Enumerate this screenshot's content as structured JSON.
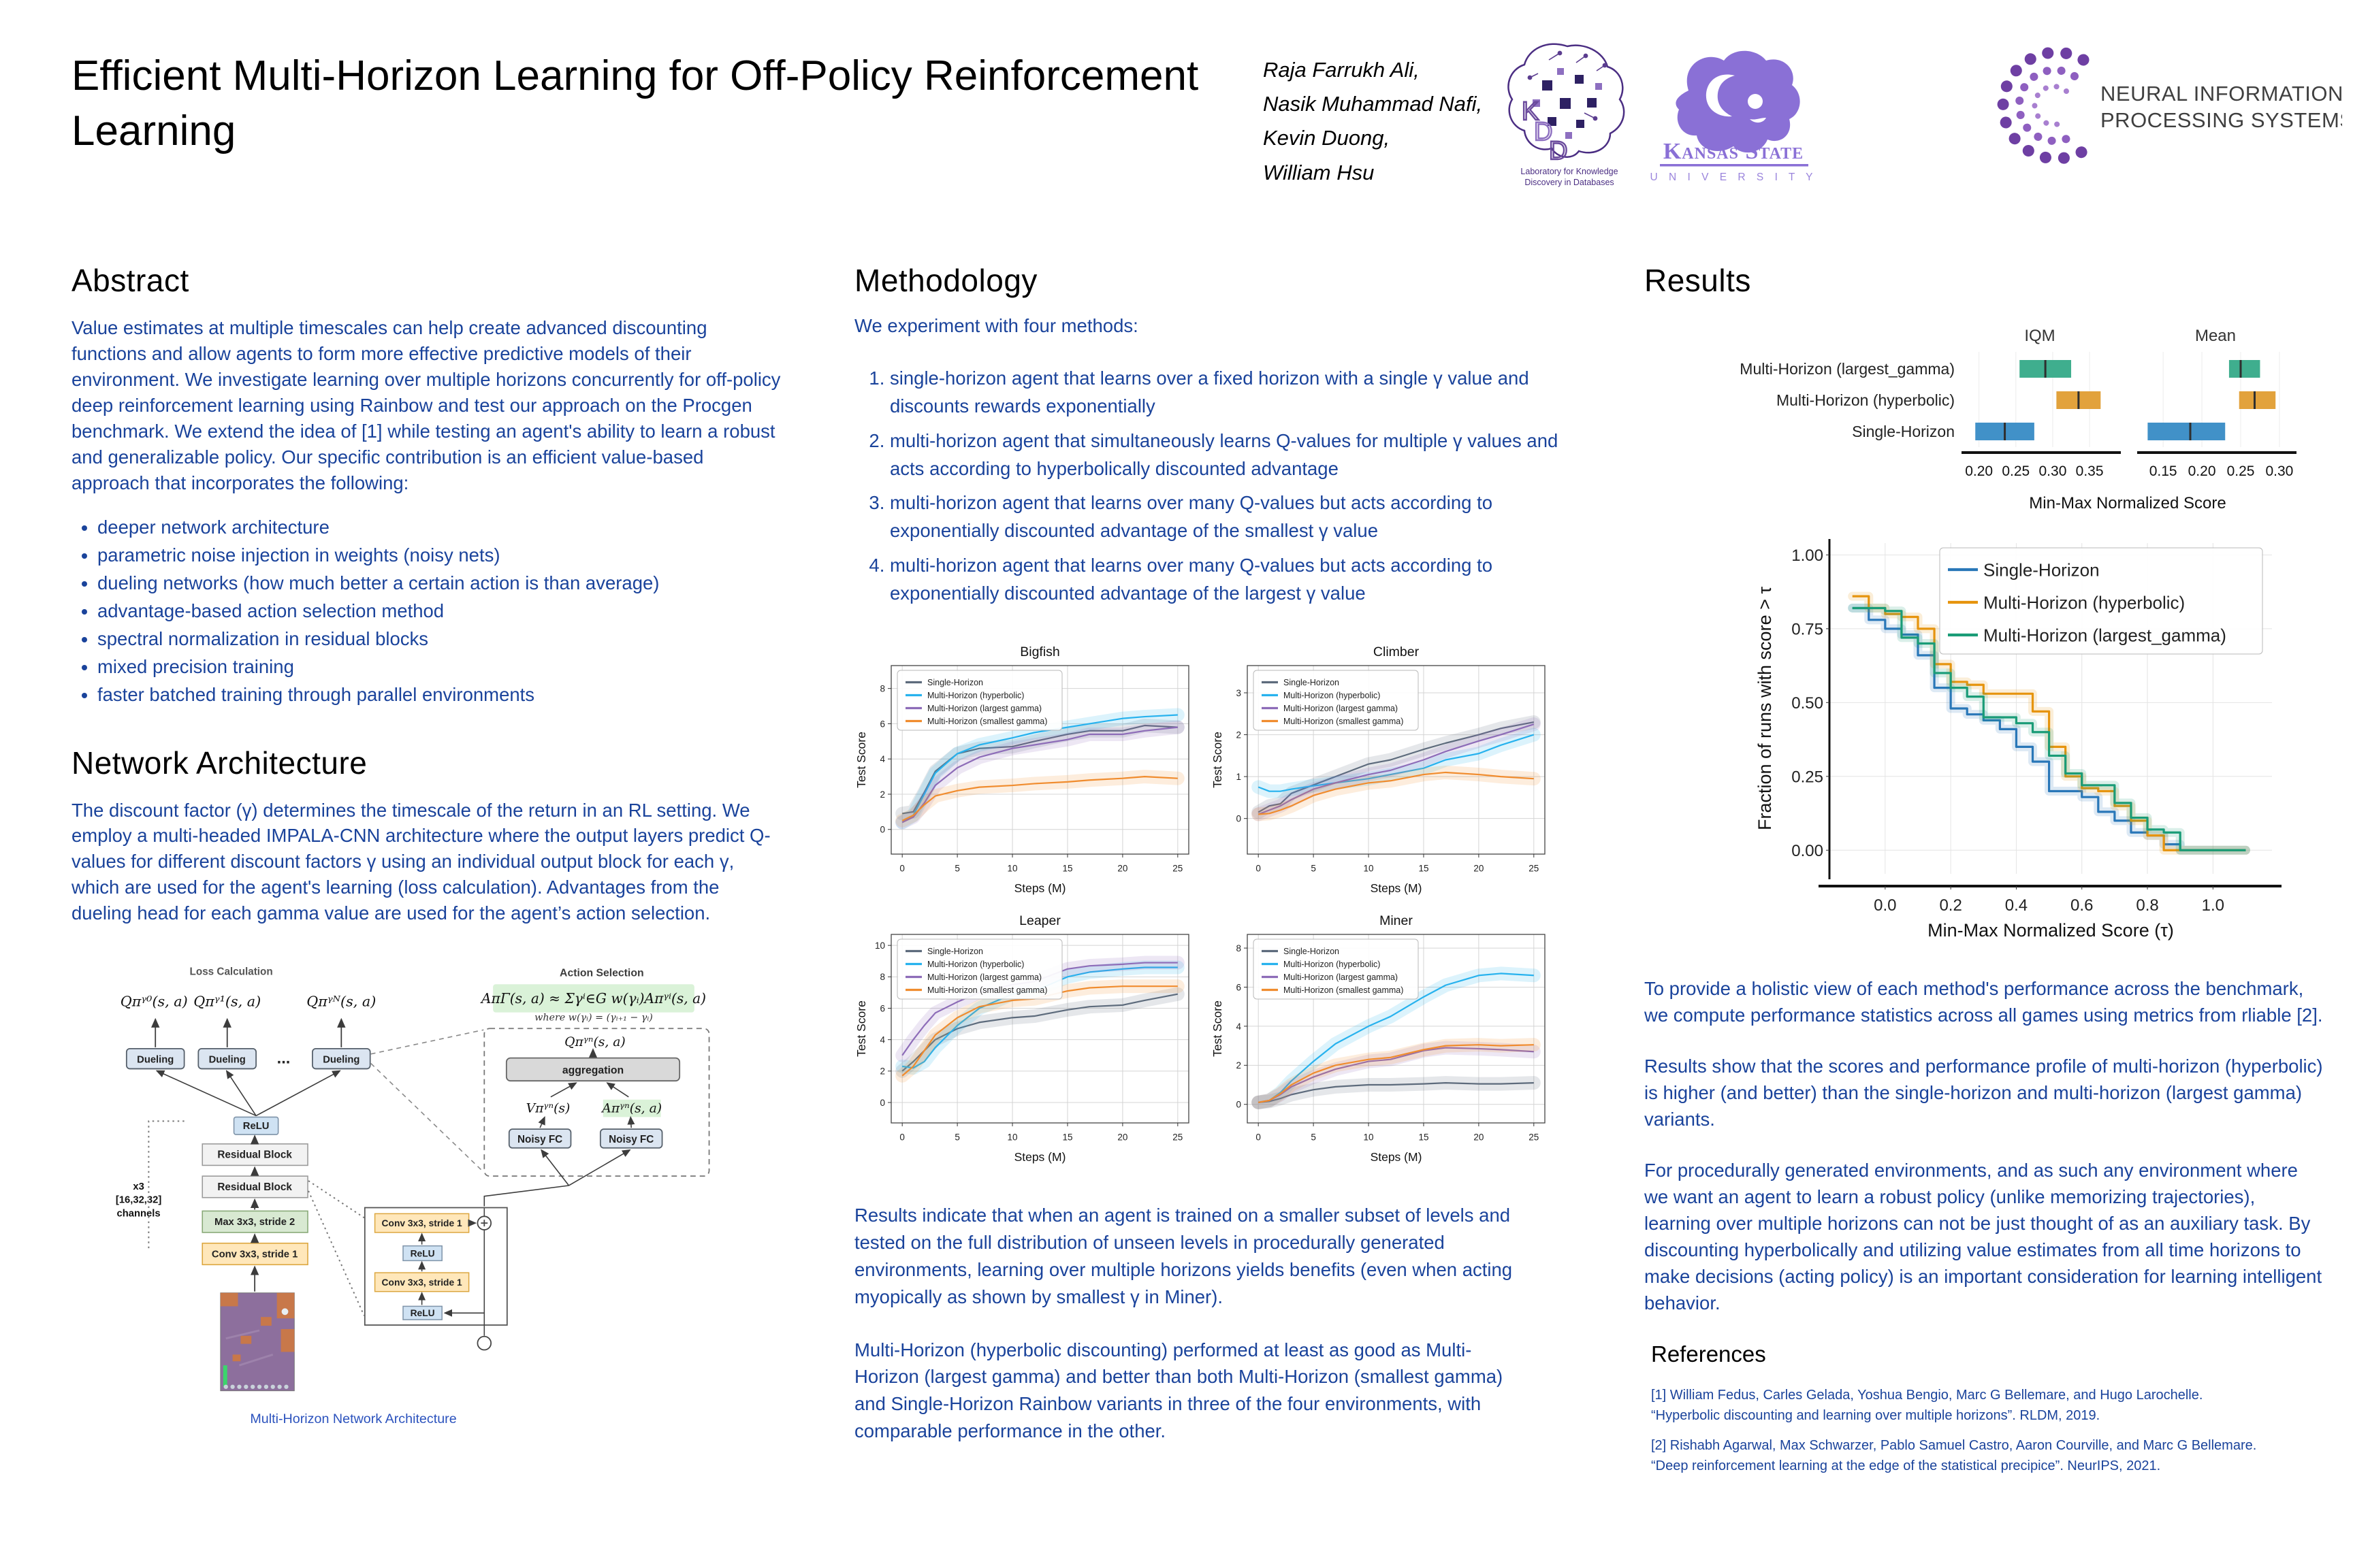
{
  "poster": {
    "title": "Efficient Multi-Horizon Learning for Off-Policy Reinforcement Learning",
    "authors": [
      "Raja Farrukh Ali,",
      "Nasik Muhammad Nafi,",
      "Kevin Duong,",
      "William Hsu"
    ],
    "logos": {
      "kdd_letters": "KDD",
      "kdd_caption_l1": "Laboratory for Knowledge",
      "kdd_caption_l2": "Discovery in Databases",
      "ksu_name": "Kansas State",
      "ksu_sub": "U N I V E R S I T Y",
      "neurips_l1": "NEURAL INFORMATION",
      "neurips_l2": "PROCESSING SYSTEMS"
    }
  },
  "abstract": {
    "heading": "Abstract",
    "body": "Value estimates at multiple timescales can help create advanced discounting functions and allow agents to form more effective predictive models of their environment. We investigate learning over multiple horizons concurrently for off-policy deep reinforcement learning using Rainbow and test our approach on the Procgen benchmark. We extend the idea of [1] while testing an agent's ability to learn a robust and generalizable policy. Our specific contribution is an efficient value-based approach that incorporates the following:",
    "bullets": [
      "deeper network architecture",
      "parametric noise injection in weights (noisy nets)",
      "dueling networks (how much better a certain action is than average)",
      "advantage-based action selection method",
      "spectral normalization in residual blocks",
      "mixed precision training",
      "faster batched training through parallel environments"
    ]
  },
  "network_architecture": {
    "heading": "Network Architecture",
    "body": "The discount factor (γ) determines the timescale of the return in an RL setting. We employ a multi-headed IMPALA-CNN architecture where the output layers predict Q-values for different discount factors γ using an individual output block for each γ, which are used for the agent's learning (loss calculation). Advantages from the dueling head for each gamma value are used for the agent’s action selection.",
    "diagram": {
      "loss_label": "Loss Calculation",
      "action_label": "Action Selection",
      "q0": "Qπᵞ⁰(s, a)",
      "q1": "Qπᵞ¹(s, a)",
      "qn_top": "Qπᵞᴺ(s, a)",
      "dueling": "Dueling",
      "dots": "...",
      "relu": "ReLU",
      "residual_block": "Residual Block",
      "max_pool": "Max 3x3, stride 2",
      "conv": "Conv 3x3, stride 1",
      "ch_l1": "x3",
      "ch_l2": "[16,32,32]",
      "ch_l3": "channels",
      "formula": "AπΓ(s, a) ≈ Σγⁱ∈G w(γᵢ)Aπᵞⁱ(s, a)",
      "formula_where": "where   w(γᵢ) = (γᵢ₊₁ − γᵢ)",
      "q_n": "Qπᵞⁿ(s, a)",
      "aggregation": "aggregation",
      "v_label": "Vπᵞⁿ(s)",
      "a_label": "Aπᵞⁿ(s, a)",
      "noisy_fc": "Noisy FC",
      "caption": "Multi-Horizon  Network  Architecture"
    }
  },
  "methodology": {
    "heading": "Methodology",
    "intro": "We experiment with four methods:",
    "items": [
      "single-horizon agent that learns over a fixed horizon with a single γ value and discounts rewards exponentially",
      "multi-horizon agent that simultaneously learns Q-values for multiple γ values and acts according to hyperbolically discounted advantage",
      "multi-horizon agent that learns over many Q-values but acts according to exponentially discounted advantage of the smallest γ value",
      "multi-horizon agent that learns over many Q-values but acts according to exponentially discounted advantage of the largest γ value"
    ],
    "note1": "Results indicate that when an agent is trained on a smaller subset of levels and tested on the full distribution of unseen levels in procedurally generated environments, learning over multiple horizons yields benefits (even when acting myopically as shown by smallest γ in Miner).",
    "note2": "Multi-Horizon (hyperbolic discounting) performed at least as good as Multi-Horizon (largest gamma) and better than both Multi-Horizon (smallest gamma) and Single-Horizon Rainbow variants in three of the four environments, with comparable performance in the other."
  },
  "results": {
    "heading": "Results",
    "p1": "To provide a holistic view of each method's performance across the benchmark, we compute performance statistics across all games using metrics from rliable [2].",
    "p2": "Results show that the scores and performance profile of multi-horizon (hyperbolic) is higher (and better) than the single-horizon and multi-horizon (largest gamma) variants.",
    "p3": "For procedurally generated environments, and as such any environment where we want an agent to learn a robust policy (unlike memorizing trajectories), learning over multiple horizons can not be just thought of as an auxiliary task. By discounting hyperbolically and utilizing value estimates from all time horizons to make decisions (acting policy) is an important consideration for learning intelligent behavior."
  },
  "references": {
    "heading": "References",
    "items": [
      "[1] William Fedus, Carles Gelada, Yoshua Bengio, Marc G Bellemare, and Hugo Larochelle. “Hyperbolic discounting and learning over multiple horizons”. RLDM, 2019.",
      "[2] Rishabh Agarwal, Max Schwarzer, Pablo Samuel Castro, Aaron Courville, and Marc G Bellemare. “Deep reinforcement learning at the edge of the statistical precipice”. NeurIPS, 2021."
    ]
  },
  "chart_data": [
    {
      "type": "line",
      "title": "Bigfish",
      "xlabel": "Steps (M)",
      "ylabel": "Test Score",
      "x": [
        0,
        1,
        2,
        3,
        5,
        7,
        10,
        12,
        15,
        17,
        20,
        22,
        25
      ],
      "xticks": [
        0,
        5,
        10,
        15,
        20,
        25
      ],
      "yticks": [
        0,
        2,
        4,
        6,
        8
      ],
      "xlim": [
        -1,
        26
      ],
      "ylim": [
        -1.4,
        9.3
      ],
      "grid": true,
      "legend_position": "top-left",
      "series": [
        {
          "name": "Single-Horizon",
          "color": "#5d6b7c",
          "values": [
            0.9,
            1.0,
            2.1,
            3.3,
            4.3,
            4.6,
            4.7,
            5.0,
            5.4,
            5.6,
            5.6,
            5.9,
            5.8
          ]
        },
        {
          "name": "Multi-Horizon (hyperbolic)",
          "color": "#27b2ee",
          "values": [
            0.4,
            0.8,
            2.0,
            3.2,
            4.3,
            4.8,
            5.2,
            5.5,
            5.8,
            6.0,
            6.3,
            6.4,
            6.5
          ]
        },
        {
          "name": "Multi-Horizon (largest gamma)",
          "color": "#8d6cb8",
          "values": [
            0.4,
            0.7,
            1.5,
            2.5,
            3.5,
            4.1,
            4.6,
            4.8,
            5.1,
            5.4,
            5.4,
            5.6,
            5.8
          ]
        },
        {
          "name": "Multi-Horizon (smallest gamma)",
          "color": "#f08c2e",
          "values": [
            0.5,
            0.8,
            1.4,
            1.9,
            2.2,
            2.4,
            2.5,
            2.6,
            2.7,
            2.8,
            2.9,
            3.0,
            2.9
          ]
        }
      ]
    },
    {
      "type": "line",
      "title": "Climber",
      "xlabel": "Steps (M)",
      "ylabel": "Test Score",
      "x": [
        0,
        1,
        2,
        3,
        5,
        7,
        10,
        12,
        15,
        17,
        20,
        22,
        25
      ],
      "xticks": [
        0,
        5,
        10,
        15,
        20,
        25
      ],
      "yticks": [
        0,
        1,
        2,
        3
      ],
      "xlim": [
        -1,
        26
      ],
      "ylim": [
        -0.85,
        3.65
      ],
      "grid": true,
      "legend_position": "top-left",
      "series": [
        {
          "name": "Single-Horizon",
          "color": "#5d6b7c",
          "values": [
            0.15,
            0.3,
            0.35,
            0.6,
            0.8,
            1.0,
            1.3,
            1.4,
            1.65,
            1.8,
            2.0,
            2.15,
            2.3
          ]
        },
        {
          "name": "Multi-Horizon (hyperbolic)",
          "color": "#27b2ee",
          "values": [
            0.75,
            0.65,
            0.65,
            0.7,
            0.78,
            0.85,
            0.95,
            1.05,
            1.2,
            1.4,
            1.55,
            1.75,
            2.0
          ]
        },
        {
          "name": "Multi-Horizon (largest gamma)",
          "color": "#8d6cb8",
          "values": [
            0.1,
            0.2,
            0.3,
            0.45,
            0.7,
            0.85,
            1.05,
            1.15,
            1.4,
            1.6,
            1.85,
            2.0,
            2.25
          ]
        },
        {
          "name": "Multi-Horizon (smallest gamma)",
          "color": "#f08c2e",
          "values": [
            0.1,
            0.12,
            0.2,
            0.3,
            0.55,
            0.7,
            0.85,
            0.9,
            1.05,
            1.1,
            1.05,
            1.0,
            0.95
          ]
        }
      ]
    },
    {
      "type": "line",
      "title": "Leaper",
      "xlabel": "Steps (M)",
      "ylabel": "Test Score",
      "x": [
        0,
        1,
        2,
        3,
        5,
        7,
        10,
        12,
        15,
        17,
        20,
        22,
        25
      ],
      "xticks": [
        0,
        5,
        10,
        15,
        20,
        25
      ],
      "yticks": [
        0,
        2,
        4,
        6,
        8,
        10
      ],
      "xlim": [
        -1,
        26
      ],
      "ylim": [
        -1.3,
        10.7
      ],
      "grid": true,
      "legend_position": "top-left",
      "series": [
        {
          "name": "Single-Horizon",
          "color": "#5d6b7c",
          "values": [
            2.0,
            2.6,
            3.3,
            4.0,
            4.7,
            5.1,
            5.4,
            5.5,
            5.9,
            6.1,
            6.2,
            6.5,
            6.9
          ]
        },
        {
          "name": "Multi-Horizon (hyperbolic)",
          "color": "#27b2ee",
          "values": [
            2.3,
            2.2,
            2.6,
            3.5,
            4.9,
            6.0,
            6.9,
            7.1,
            8.0,
            8.3,
            8.5,
            8.6,
            8.6
          ]
        },
        {
          "name": "Multi-Horizon (largest gamma)",
          "color": "#8d6cb8",
          "values": [
            3.0,
            4.0,
            4.9,
            5.7,
            6.4,
            7.0,
            7.5,
            7.7,
            8.5,
            8.7,
            8.8,
            8.9,
            8.9
          ]
        },
        {
          "name": "Multi-Horizon (smallest gamma)",
          "color": "#f08c2e",
          "values": [
            1.7,
            2.3,
            3.3,
            4.3,
            5.4,
            6.1,
            6.5,
            6.6,
            7.1,
            7.3,
            7.4,
            7.4,
            7.4
          ]
        }
      ]
    },
    {
      "type": "line",
      "title": "Miner",
      "xlabel": "Steps (M)",
      "ylabel": "Test Score",
      "x": [
        0,
        1,
        2,
        3,
        5,
        7,
        10,
        12,
        15,
        17,
        20,
        22,
        25
      ],
      "xticks": [
        0,
        5,
        10,
        15,
        20,
        25
      ],
      "yticks": [
        0,
        2,
        4,
        6,
        8
      ],
      "xlim": [
        -1,
        26
      ],
      "ylim": [
        -0.95,
        8.7
      ],
      "grid": true,
      "legend_position": "top-left",
      "series": [
        {
          "name": "Single-Horizon",
          "color": "#5d6b7c",
          "values": [
            0.1,
            0.15,
            0.3,
            0.5,
            0.75,
            0.9,
            1.0,
            1.0,
            1.05,
            1.1,
            1.05,
            1.05,
            1.1
          ]
        },
        {
          "name": "Multi-Horizon (hyperbolic)",
          "color": "#27b2ee",
          "values": [
            0.1,
            0.2,
            0.6,
            1.2,
            2.2,
            3.1,
            4.0,
            4.5,
            5.5,
            6.1,
            6.6,
            6.7,
            6.6
          ]
        },
        {
          "name": "Multi-Horizon (largest gamma)",
          "color": "#8d6cb8",
          "values": [
            0.1,
            0.2,
            0.5,
            0.9,
            1.4,
            1.8,
            2.2,
            2.3,
            2.75,
            2.9,
            2.85,
            2.8,
            2.7
          ]
        },
        {
          "name": "Multi-Horizon (smallest gamma)",
          "color": "#f08c2e",
          "values": [
            0.1,
            0.2,
            0.55,
            1.0,
            1.6,
            2.0,
            2.3,
            2.4,
            2.8,
            3.0,
            3.05,
            3.0,
            3.05
          ]
        }
      ]
    },
    {
      "type": "interval",
      "xlabel": "Min-Max Normalized Score",
      "panels": [
        {
          "title": "IQM",
          "domain": [
            0.18,
            0.385
          ],
          "ticks": [
            0.2,
            0.25,
            0.3,
            0.35
          ],
          "tick_labels": [
            "0.20",
            "0.25",
            "0.30",
            "0.35"
          ]
        },
        {
          "title": "Mean",
          "domain": [
            0.12,
            0.315
          ],
          "ticks": [
            0.15,
            0.2,
            0.25,
            0.3
          ],
          "tick_labels": [
            "0.15",
            "0.20",
            "0.25",
            "0.30"
          ]
        }
      ],
      "rows": [
        {
          "name": "Multi-Horizon (largest_gamma)",
          "color": "#3fae8e",
          "iqm": [
            0.255,
            0.29,
            0.325
          ],
          "mean": [
            0.235,
            0.25,
            0.275
          ]
        },
        {
          "name": "Multi-Horizon (hyperbolic)",
          "color": "#e2a23c",
          "iqm": [
            0.305,
            0.335,
            0.365
          ],
          "mean": [
            0.248,
            0.268,
            0.295
          ]
        },
        {
          "name": "Single-Horizon",
          "color": "#4191c8",
          "iqm": [
            0.195,
            0.235,
            0.275
          ],
          "mean": [
            0.13,
            0.185,
            0.23
          ]
        }
      ]
    },
    {
      "type": "line",
      "title": "",
      "xlabel": "Min-Max Normalized Score (τ)",
      "ylabel": "Fraction of runs with score > τ",
      "step": true,
      "x": [
        -0.1,
        -0.05,
        0,
        0.05,
        0.1,
        0.15,
        0.2,
        0.25,
        0.3,
        0.35,
        0.4,
        0.45,
        0.5,
        0.55,
        0.6,
        0.65,
        0.7,
        0.75,
        0.8,
        0.85,
        0.9,
        1.1
      ],
      "xticks": [
        0.0,
        0.2,
        0.4,
        0.6,
        0.8,
        1.0
      ],
      "xtick_labels": [
        "0.0",
        "0.2",
        "0.4",
        "0.6",
        "0.8",
        "1.0"
      ],
      "yticks": [
        0.0,
        0.25,
        0.5,
        0.75,
        1.0
      ],
      "ytick_labels": [
        "0.00",
        "0.25",
        "0.50",
        "0.75",
        "1.00"
      ],
      "xlim": [
        -0.17,
        1.18
      ],
      "ylim": [
        -0.08,
        1.04
      ],
      "grid": true,
      "legend_position": "top-right",
      "series": [
        {
          "name": "Single-Horizon",
          "color": "#2977b8",
          "values": [
            0.82,
            0.78,
            0.75,
            0.73,
            0.66,
            0.55,
            0.48,
            0.46,
            0.44,
            0.41,
            0.35,
            0.3,
            0.2,
            0.2,
            0.18,
            0.13,
            0.1,
            0.06,
            0.05,
            0.02,
            0.0,
            0.0
          ]
        },
        {
          "name": "Multi-Horizon (hyperbolic)",
          "color": "#e6940e",
          "values": [
            0.86,
            0.82,
            0.8,
            0.79,
            0.75,
            0.63,
            0.57,
            0.56,
            0.53,
            0.53,
            0.53,
            0.47,
            0.35,
            0.25,
            0.21,
            0.2,
            0.15,
            0.1,
            0.05,
            0.0,
            0.0,
            0.0
          ]
        },
        {
          "name": "Multi-Horizon (largest_gamma)",
          "color": "#1a9c77",
          "values": [
            0.82,
            0.82,
            0.81,
            0.72,
            0.7,
            0.6,
            0.55,
            0.52,
            0.45,
            0.45,
            0.43,
            0.4,
            0.32,
            0.26,
            0.22,
            0.22,
            0.16,
            0.11,
            0.07,
            0.06,
            0.0,
            0.0
          ]
        }
      ]
    }
  ]
}
